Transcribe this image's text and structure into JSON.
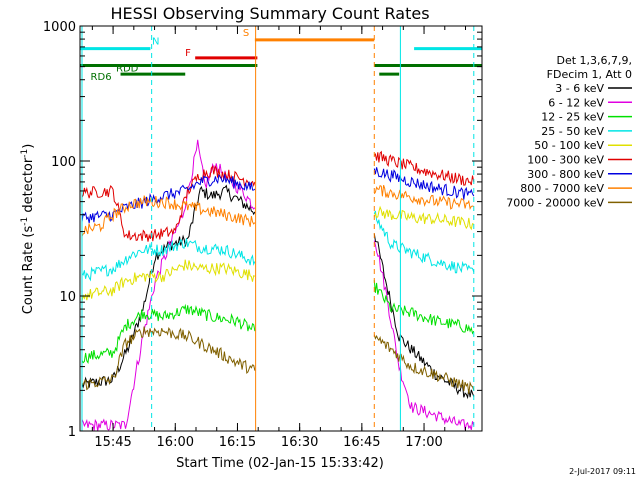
{
  "chart_data": {
    "type": "line",
    "title": "HESSI Observing Summary Count Rates",
    "xlabel": "Start Time (02-Jan-15 15:33:42)",
    "ylabel_main": "Count Rate (s",
    "ylabel_exp1": "-1",
    "ylabel_mid": " detector",
    "ylabel_exp2": "-1",
    "ylabel_end": ")",
    "x_range_min": [
      15.617,
      17.233
    ],
    "yscale": "log",
    "ylim": [
      1,
      1000
    ],
    "x_ticks": [
      {
        "t": 15.75,
        "label": "15:45"
      },
      {
        "t": 16.0,
        "label": "16:00"
      },
      {
        "t": 16.25,
        "label": "16:15"
      },
      {
        "t": 16.5,
        "label": "16:30"
      },
      {
        "t": 16.75,
        "label": "16:45"
      },
      {
        "t": 17.0,
        "label": "17:00"
      }
    ],
    "y_ticks": [
      {
        "v": 1,
        "label": "1"
      },
      {
        "v": 10,
        "label": "10"
      },
      {
        "v": 100,
        "label": "100"
      },
      {
        "v": 1000,
        "label": "1000"
      }
    ],
    "legend_header": [
      "Det 1,3,6,7,9,",
      "FDecim 1, Att 0"
    ],
    "legend_placement": "right",
    "timestamp": "2-Jul-2017 09:11",
    "flag_lines": [
      {
        "label": "N",
        "color": "#00e5e5",
        "segments": [
          [
            15.617,
            15.9
          ],
          [
            16.96,
            17.233
          ]
        ],
        "value": 680
      },
      {
        "label": "F",
        "color": "#e00000",
        "segments": [
          [
            16.08,
            16.33
          ]
        ],
        "value": 580
      },
      {
        "label": "S",
        "color": "#ff8000",
        "segments": [
          [
            16.32,
            16.8
          ]
        ],
        "value": 790
      },
      {
        "label": "RDD",
        "color": "#007000",
        "segments": [
          [
            15.617,
            16.33
          ],
          [
            16.8,
            17.233
          ]
        ],
        "value": 510
      },
      {
        "label": "RD6",
        "color": "#007000",
        "segments": [
          [
            15.78,
            16.04
          ],
          [
            16.82,
            16.9
          ]
        ],
        "value": 440
      }
    ],
    "vertical_markers": [
      {
        "t": 15.625,
        "color": "#00e5e5",
        "style": "solid"
      },
      {
        "t": 15.905,
        "color": "#00e5e5",
        "style": "dashed"
      },
      {
        "t": 16.323,
        "color": "#ff8000",
        "style": "solid"
      },
      {
        "t": 16.8,
        "color": "#ff8000",
        "style": "dashed"
      },
      {
        "t": 16.905,
        "color": "#00e5e5",
        "style": "solid"
      },
      {
        "t": 17.2,
        "color": "#00e5e5",
        "style": "dashed"
      }
    ],
    "gap": [
      16.335,
      16.79
    ],
    "series": [
      {
        "name": "3 - 6 keV",
        "color": "#000000",
        "before": [
          [
            15.625,
            2.2
          ],
          [
            15.75,
            2.4
          ],
          [
            15.82,
            4.5
          ],
          [
            15.87,
            8
          ],
          [
            15.92,
            20
          ],
          [
            15.98,
            24
          ],
          [
            16.05,
            26
          ],
          [
            16.1,
            60
          ],
          [
            16.15,
            55
          ],
          [
            16.2,
            60
          ],
          [
            16.25,
            52
          ],
          [
            16.32,
            42
          ]
        ],
        "after": [
          [
            16.8,
            30
          ],
          [
            16.85,
            12
          ],
          [
            16.9,
            5
          ],
          [
            16.95,
            4
          ],
          [
            17.05,
            2.6
          ],
          [
            17.15,
            2
          ],
          [
            17.2,
            1.8
          ]
        ]
      },
      {
        "name": "6 - 12 keV",
        "color": "#e000e0",
        "before": [
          [
            15.625,
            1.1
          ],
          [
            15.8,
            1.1
          ],
          [
            15.87,
            5
          ],
          [
            15.92,
            13
          ],
          [
            15.97,
            22
          ],
          [
            16.03,
            40
          ],
          [
            16.09,
            130
          ],
          [
            16.12,
            65
          ],
          [
            16.16,
            95
          ],
          [
            16.22,
            70
          ],
          [
            16.27,
            60
          ],
          [
            16.32,
            45
          ]
        ],
        "after": [
          [
            16.8,
            28
          ],
          [
            16.85,
            10
          ],
          [
            16.9,
            3
          ],
          [
            16.95,
            1.5
          ],
          [
            17.05,
            1.3
          ],
          [
            17.15,
            1.1
          ],
          [
            17.2,
            1.1
          ]
        ]
      },
      {
        "name": "12 - 25 keV",
        "color": "#00e000",
        "before": [
          [
            15.625,
            3.5
          ],
          [
            15.75,
            3.8
          ],
          [
            15.8,
            6
          ],
          [
            15.87,
            7.5
          ],
          [
            15.95,
            7
          ],
          [
            16.05,
            8
          ],
          [
            16.15,
            7
          ],
          [
            16.25,
            6.5
          ],
          [
            16.32,
            5.5
          ]
        ],
        "after": [
          [
            16.8,
            12
          ],
          [
            16.87,
            8
          ],
          [
            16.95,
            7.5
          ],
          [
            17.05,
            6.5
          ],
          [
            17.15,
            6
          ],
          [
            17.2,
            5.5
          ]
        ]
      },
      {
        "name": "25 - 50 keV",
        "color": "#00e5e5",
        "before": [
          [
            15.625,
            14
          ],
          [
            15.75,
            16
          ],
          [
            15.82,
            20
          ],
          [
            15.87,
            22
          ],
          [
            15.95,
            22
          ],
          [
            16.04,
            25
          ],
          [
            16.1,
            23
          ],
          [
            16.2,
            22
          ],
          [
            16.32,
            18
          ]
        ],
        "after": [
          [
            16.8,
            40
          ],
          [
            16.87,
            24
          ],
          [
            16.95,
            21
          ],
          [
            17.05,
            18
          ],
          [
            17.15,
            16
          ],
          [
            17.2,
            15
          ]
        ]
      },
      {
        "name": "50 - 100 keV",
        "color": "#e0e000",
        "before": [
          [
            15.625,
            10
          ],
          [
            15.75,
            11
          ],
          [
            15.8,
            13
          ],
          [
            15.87,
            14
          ],
          [
            15.95,
            14
          ],
          [
            16.04,
            17
          ],
          [
            16.1,
            16
          ],
          [
            16.2,
            16
          ],
          [
            16.32,
            14
          ]
        ],
        "after": [
          [
            16.8,
            42
          ],
          [
            16.87,
            40
          ],
          [
            16.95,
            38
          ],
          [
            17.05,
            37
          ],
          [
            17.15,
            35
          ],
          [
            17.2,
            34
          ]
        ]
      },
      {
        "name": "100 - 300 keV",
        "color": "#e00000",
        "before": [
          [
            15.625,
            58
          ],
          [
            15.75,
            60
          ],
          [
            15.8,
            28
          ],
          [
            15.9,
            28
          ],
          [
            16.0,
            30
          ],
          [
            16.05,
            60
          ],
          [
            16.1,
            80
          ],
          [
            16.15,
            85
          ],
          [
            16.2,
            80
          ],
          [
            16.25,
            75
          ],
          [
            16.32,
            70
          ]
        ],
        "after": [
          [
            16.8,
            110
          ],
          [
            16.87,
            100
          ],
          [
            16.95,
            90
          ],
          [
            17.05,
            80
          ],
          [
            17.15,
            73
          ],
          [
            17.2,
            70
          ]
        ]
      },
      {
        "name": "300 - 800 keV",
        "color": "#0000e0",
        "before": [
          [
            15.625,
            38
          ],
          [
            15.75,
            40
          ],
          [
            15.8,
            45
          ],
          [
            15.88,
            50
          ],
          [
            15.95,
            55
          ],
          [
            16.04,
            60
          ],
          [
            16.1,
            70
          ],
          [
            16.18,
            75
          ],
          [
            16.25,
            68
          ],
          [
            16.32,
            62
          ]
        ],
        "after": [
          [
            16.8,
            85
          ],
          [
            16.87,
            78
          ],
          [
            16.95,
            70
          ],
          [
            17.05,
            63
          ],
          [
            17.15,
            58
          ],
          [
            17.2,
            55
          ]
        ]
      },
      {
        "name": "800 - 7000 keV",
        "color": "#ff8000",
        "before": [
          [
            15.625,
            30
          ],
          [
            15.7,
            33
          ],
          [
            15.75,
            40
          ],
          [
            15.82,
            48
          ],
          [
            15.88,
            50
          ],
          [
            15.95,
            50
          ],
          [
            16.05,
            46
          ],
          [
            16.15,
            42
          ],
          [
            16.25,
            38
          ],
          [
            16.32,
            35
          ]
        ],
        "after": [
          [
            16.8,
            62
          ],
          [
            16.87,
            58
          ],
          [
            16.95,
            54
          ],
          [
            17.05,
            50
          ],
          [
            17.15,
            48
          ],
          [
            17.2,
            46
          ]
        ]
      },
      {
        "name": "7000 - 20000 keV",
        "color": "#806000",
        "before": [
          [
            15.625,
            2.2
          ],
          [
            15.75,
            2.4
          ],
          [
            15.8,
            4.5
          ],
          [
            15.87,
            5.5
          ],
          [
            15.95,
            5.5
          ],
          [
            16.05,
            5
          ],
          [
            16.15,
            4
          ],
          [
            16.25,
            3.2
          ],
          [
            16.32,
            2.8
          ]
        ],
        "after": [
          [
            16.8,
            5
          ],
          [
            16.87,
            4
          ],
          [
            16.95,
            3
          ],
          [
            17.05,
            2.6
          ],
          [
            17.15,
            2.2
          ],
          [
            17.2,
            2
          ]
        ]
      }
    ]
  }
}
